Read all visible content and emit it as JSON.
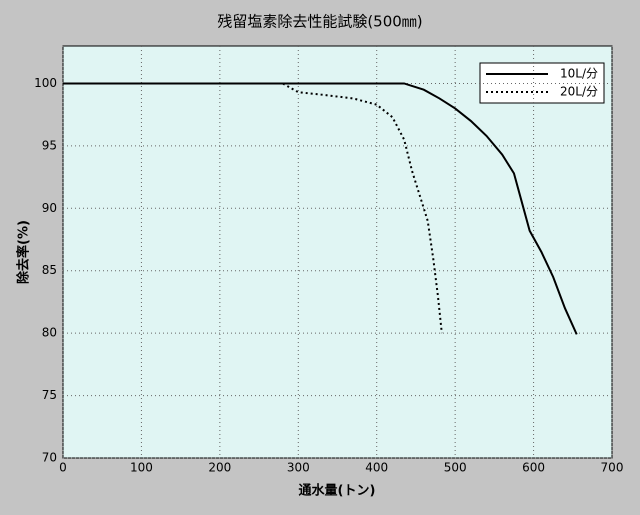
{
  "chart_data": {
    "type": "line",
    "title": "残留塩素除去性能試験(500㎜)",
    "x_label": "通水量(トン)",
    "y_label": "除去率(%)",
    "xlim": [
      0,
      700
    ],
    "xticks": [
      0,
      100,
      200,
      300,
      400,
      500,
      600,
      700
    ],
    "ylim": [
      70,
      103
    ],
    "yticks": [
      70,
      75,
      80,
      85,
      90,
      95,
      100
    ],
    "grid": true,
    "legend": "upper right",
    "series": [
      {
        "name": "10L/分",
        "color": "#000000",
        "dash": "solid",
        "x": [
          0,
          435,
          460,
          480,
          500,
          520,
          540,
          560,
          575,
          585,
          595,
          610,
          625,
          640,
          655
        ],
        "values": [
          100,
          100,
          99.5,
          98.8,
          98,
          97,
          95.8,
          94.3,
          92.8,
          90.5,
          88.2,
          86.5,
          84.5,
          82,
          79.9
        ]
      },
      {
        "name": "20L/分",
        "color": "#000000",
        "dash": "dotted",
        "x": [
          0,
          280,
          300,
          330,
          370,
          400,
          420,
          435,
          445,
          455,
          465,
          472,
          478,
          483
        ],
        "values": [
          100,
          100,
          99.3,
          99.1,
          98.8,
          98.3,
          97.3,
          95.5,
          93,
          91,
          89,
          86,
          83,
          80
        ]
      }
    ]
  }
}
